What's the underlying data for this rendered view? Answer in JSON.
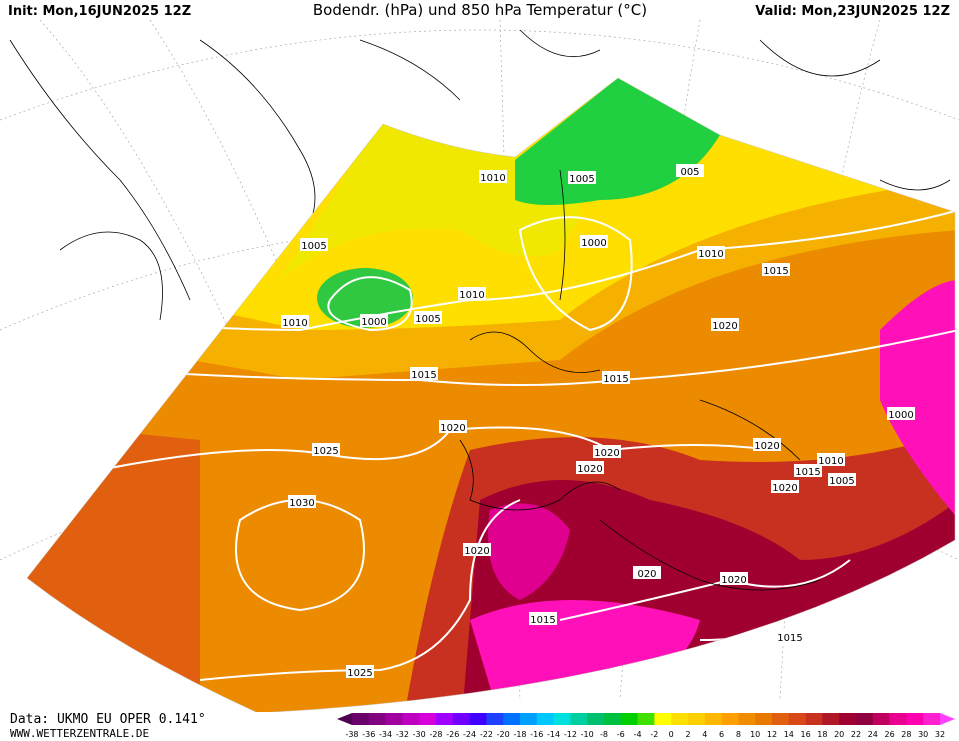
{
  "header": {
    "init": "Init: Mon,16JUN2025 12Z",
    "title": "Bodendr. (hPa) und 850 hPa Temperatur (°C)",
    "valid": "Valid: Mon,23JUN2025 12Z"
  },
  "footer": {
    "data": "Data: UKMO EU OPER 0.141°",
    "site": "WWW.WETTERZENTRALE.DE"
  },
  "isobars": [
    "1010",
    "1005",
    "005",
    "1005",
    "1000",
    "1010",
    "1015",
    "1010",
    "1010",
    "1000",
    "1005",
    "1020",
    "1015",
    "1015",
    "1020",
    "1000",
    "1025",
    "1020",
    "1020",
    "1010",
    "1015",
    "1020",
    "1005",
    "1020",
    "1030",
    "1020",
    "020",
    "1020",
    "1015",
    "1015",
    "1025"
  ],
  "colorbar": {
    "labels": [
      -38,
      -36,
      -34,
      -32,
      -30,
      -28,
      -26,
      -24,
      -22,
      -20,
      -18,
      -16,
      -14,
      -12,
      -10,
      -8,
      -6,
      -4,
      -2,
      0,
      2,
      4,
      6,
      8,
      10,
      12,
      14,
      16,
      18,
      20,
      22,
      24,
      26,
      28,
      30,
      32
    ],
    "colors": [
      "#500050",
      "#6a006a",
      "#800080",
      "#a000a0",
      "#c000c0",
      "#d800d8",
      "#a000ff",
      "#7000ff",
      "#4000ff",
      "#2040ff",
      "#0070ff",
      "#00a0ff",
      "#00c8ff",
      "#00e0e0",
      "#00d0a0",
      "#00c070",
      "#00c040",
      "#00d000",
      "#40e000",
      "#ffff00",
      "#ffe000",
      "#ffd000",
      "#ffb800",
      "#ffa000",
      "#f08c00",
      "#e87800",
      "#e06010",
      "#d84818",
      "#c83020",
      "#b01828",
      "#a00030",
      "#900040",
      "#c00060",
      "#e80090",
      "#ff00b0",
      "#ff20d0",
      "#ff40ff"
    ]
  }
}
